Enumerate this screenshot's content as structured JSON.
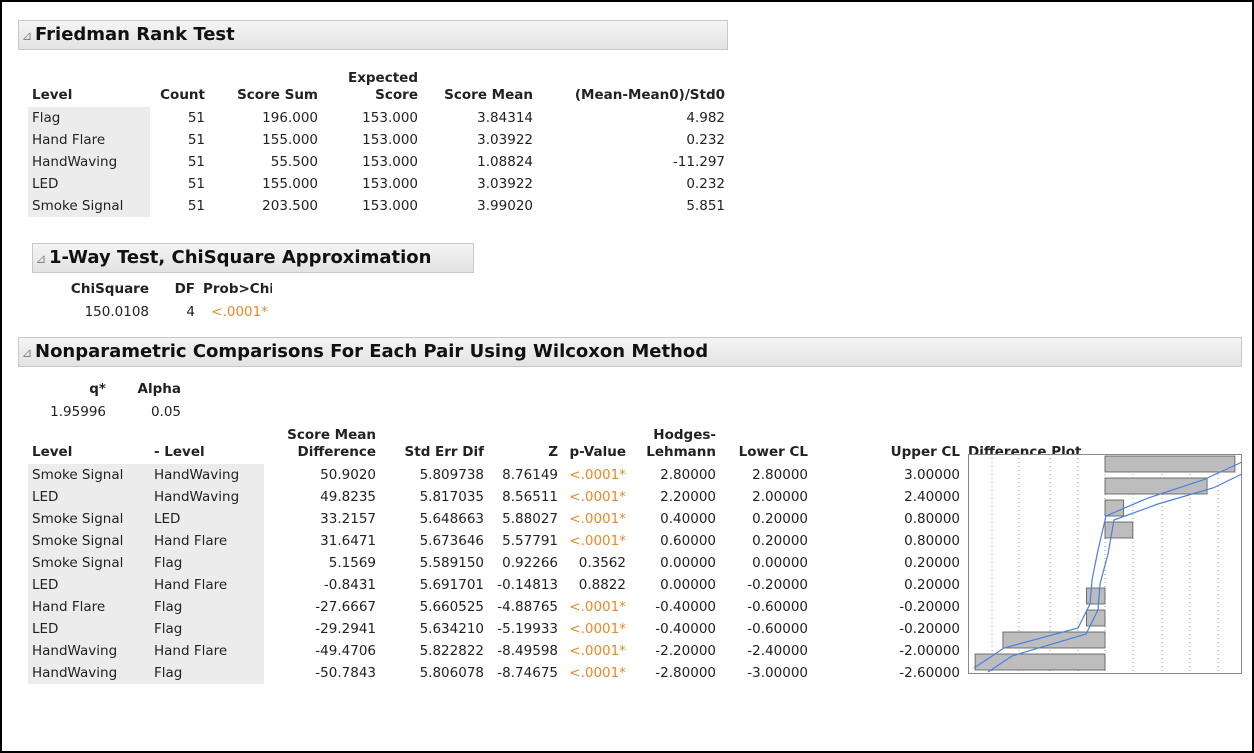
{
  "friedman": {
    "title": "Friedman Rank Test",
    "columns": [
      "Level",
      "Count",
      "Score Sum",
      "Expected\nScore",
      "Score Mean",
      "(Mean-Mean0)/Std0"
    ],
    "rows": [
      [
        "Flag",
        "51",
        "196.000",
        "153.000",
        "3.84314",
        "4.982"
      ],
      [
        "Hand Flare",
        "51",
        "155.000",
        "153.000",
        "3.03922",
        "0.232"
      ],
      [
        "HandWaving",
        "51",
        "55.500",
        "153.000",
        "1.08824",
        "-11.297"
      ],
      [
        "LED",
        "51",
        "155.000",
        "153.000",
        "3.03922",
        "0.232"
      ],
      [
        "Smoke Signal",
        "51",
        "203.500",
        "153.000",
        "3.99020",
        "5.851"
      ]
    ]
  },
  "chisq": {
    "title": "1-Way Test, ChiSquare Approximation",
    "columns": [
      "ChiSquare",
      "DF",
      "Prob>ChiSq"
    ],
    "rows": [
      [
        "150.0108",
        "4",
        "<.0001*"
      ]
    ]
  },
  "comparisons": {
    "title": "Nonparametric Comparisons For Each Pair Using Wilcoxon Method",
    "params": {
      "columns": [
        "q*",
        "Alpha"
      ],
      "rows": [
        [
          "1.95996",
          "0.05"
        ]
      ]
    },
    "table": {
      "columns": [
        "Level",
        "- Level",
        "Score Mean\nDifference",
        "Std Err Dif",
        "Z",
        "p-Value",
        "Hodges-\nLehmann",
        "Lower CL",
        "Upper CL",
        "Difference Plot"
      ],
      "rows": [
        [
          "Smoke Signal",
          "HandWaving",
          "50.9020",
          "5.809738",
          "8.76149",
          "<.0001*",
          "2.80000",
          "2.80000",
          "3.00000"
        ],
        [
          "LED",
          "HandWaving",
          "49.8235",
          "5.817035",
          "8.56511",
          "<.0001*",
          "2.20000",
          "2.00000",
          "2.40000"
        ],
        [
          "Smoke Signal",
          "LED",
          "33.2157",
          "5.648663",
          "5.88027",
          "<.0001*",
          "0.40000",
          "0.20000",
          "0.80000"
        ],
        [
          "Smoke Signal",
          "Hand Flare",
          "31.6471",
          "5.673646",
          "5.57791",
          "<.0001*",
          "0.60000",
          "0.20000",
          "0.80000"
        ],
        [
          "Smoke Signal",
          "Flag",
          "5.1569",
          "5.589150",
          "0.92266",
          "0.3562",
          "0.00000",
          "0.00000",
          "0.20000"
        ],
        [
          "LED",
          "Hand Flare",
          "-0.8431",
          "5.691701",
          "-0.14813",
          "0.8822",
          "0.00000",
          "-0.20000",
          "0.20000"
        ],
        [
          "Hand Flare",
          "Flag",
          "-27.6667",
          "5.660525",
          "-4.88765",
          "<.0001*",
          "-0.40000",
          "-0.60000",
          "-0.20000"
        ],
        [
          "LED",
          "Flag",
          "-29.2941",
          "5.634210",
          "-5.19933",
          "<.0001*",
          "-0.40000",
          "-0.60000",
          "-0.20000"
        ],
        [
          "HandWaving",
          "Hand Flare",
          "-49.4706",
          "5.822822",
          "-8.49598",
          "<.0001*",
          "-2.20000",
          "-2.40000",
          "-2.00000"
        ],
        [
          "HandWaving",
          "Flag",
          "-50.7843",
          "5.806078",
          "-8.74675",
          "<.0001*",
          "-2.80000",
          "-3.00000",
          "-2.60000"
        ]
      ]
    }
  }
}
